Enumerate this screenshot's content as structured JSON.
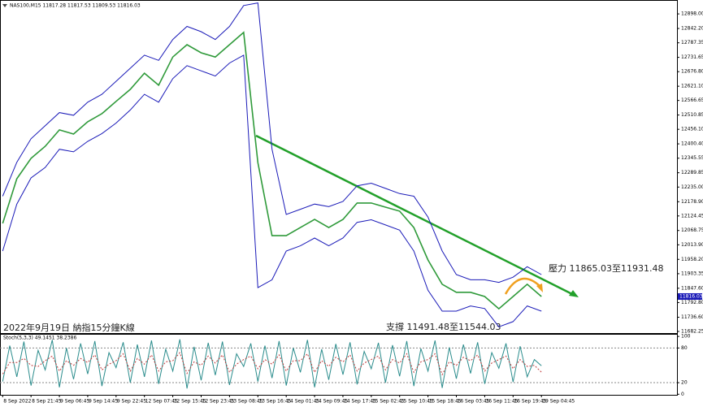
{
  "chart_data": [
    {
      "type": "line",
      "title": "NAS100,M15  11817.28 11817.53 11809.53 11816.03",
      "annotations": [
        "2022年9月19日 納指15分鐘K線",
        "壓力 11865.03至11931.48",
        "支撐 11491.48至11544.03"
      ],
      "current_price": {
        "value": 11816.03,
        "label": "11816.03"
      },
      "x": [
        0,
        16,
        32,
        48,
        64,
        80,
        96,
        112,
        128,
        144,
        160,
        176,
        192,
        208,
        224,
        240,
        256,
        272,
        288,
        304,
        320,
        336,
        352,
        368,
        384,
        400,
        416,
        432,
        448,
        464,
        480,
        496,
        512,
        528,
        544,
        560,
        576,
        592,
        608
      ],
      "series": [
        {
          "color": "#2f9a3a",
          "values": [
            12096,
            12267,
            12345,
            12391,
            12454,
            12438,
            12485,
            12516,
            12563,
            12609,
            12671,
            12625,
            12733,
            12780,
            12749,
            12733,
            12780,
            12827,
            12329,
            12049,
            12049,
            12080,
            12111,
            12080,
            12111,
            12174,
            12174,
            12158,
            12143,
            12080,
            11956,
            11863,
            11832,
            11832,
            11816,
            11769,
            11816,
            11863,
            11816.03
          ]
        },
        {
          "color": "#1a1ab8",
          "values": [
            12200,
            12330,
            12420,
            12470,
            12520,
            12510,
            12560,
            12590,
            12640,
            12690,
            12740,
            12720,
            12800,
            12850,
            12830,
            12800,
            12850,
            12930,
            12940,
            12380,
            12130,
            12150,
            12170,
            12160,
            12180,
            12240,
            12250,
            12230,
            12210,
            12200,
            12120,
            11990,
            11900,
            11880,
            11880,
            11870,
            11890,
            11930,
            11900
          ]
        },
        {
          "color": "#1a1ab8",
          "values": [
            11990,
            12170,
            12270,
            12310,
            12380,
            12370,
            12410,
            12440,
            12480,
            12530,
            12590,
            12560,
            12650,
            12700,
            12680,
            12660,
            12710,
            12740,
            11850,
            11880,
            11990,
            12010,
            12040,
            12010,
            12040,
            12100,
            12110,
            12090,
            12070,
            11990,
            11840,
            11760,
            11760,
            11780,
            11770,
            11700,
            11720,
            11780,
            11760
          ]
        }
      ],
      "xlim": [
        -3,
        761
      ],
      "xticks": [
        {
          "value": 0,
          "label": "8 Sep 2022"
        },
        {
          "value": 32,
          "label": "8 Sep 21:45"
        },
        {
          "value": 64,
          "label": "9 Sep 06:45"
        },
        {
          "value": 96,
          "label": "9 Sep 14:45"
        },
        {
          "value": 128,
          "label": "9 Sep 22:45"
        },
        {
          "value": 160,
          "label": "12 Sep 07:45"
        },
        {
          "value": 192,
          "label": "12 Sep 15:45"
        },
        {
          "value": 224,
          "label": "12 Sep 23:45"
        },
        {
          "value": 256,
          "label": "13 Sep 08:45"
        },
        {
          "value": 288,
          "label": "13 Sep 16:45"
        },
        {
          "value": 320,
          "label": "14 Sep 01:45"
        },
        {
          "value": 352,
          "label": "14 Sep 09:45"
        },
        {
          "value": 384,
          "label": "14 Sep 17:45"
        },
        {
          "value": 416,
          "label": "15 Sep 02:45"
        },
        {
          "value": 448,
          "label": "15 Sep 10:45"
        },
        {
          "value": 480,
          "label": "15 Sep 18:45"
        },
        {
          "value": 512,
          "label": "16 Sep 03:45"
        },
        {
          "value": 544,
          "label": "16 Sep 11:45"
        },
        {
          "value": 576,
          "label": "16 Sep 19:45"
        },
        {
          "value": 608,
          "label": "19 Sep 04:45"
        }
      ],
      "ylim": [
        11676,
        12945
      ],
      "yticks": [
        {
          "value": 12898,
          "label": "12898.00"
        },
        {
          "value": 12842.2,
          "label": "12842.20"
        },
        {
          "value": 12787.35,
          "label": "12787.35"
        },
        {
          "value": 12731.65,
          "label": "12731.65"
        },
        {
          "value": 12676.8,
          "label": "12676.80"
        },
        {
          "value": 12621.1,
          "label": "12621.10"
        },
        {
          "value": 12566.65,
          "label": "12566.65"
        },
        {
          "value": 12510.85,
          "label": "12510.85"
        },
        {
          "value": 12456.1,
          "label": "12456.10"
        },
        {
          "value": 12400.4,
          "label": "12400.40"
        },
        {
          "value": 12345.55,
          "label": "12345.55"
        },
        {
          "value": 12289.85,
          "label": "12289.85"
        },
        {
          "value": 12235,
          "label": "12235.00"
        },
        {
          "value": 12178.9,
          "label": "12178.90"
        },
        {
          "value": 12124.45,
          "label": "12124.45"
        },
        {
          "value": 12068.75,
          "label": "12068.75"
        },
        {
          "value": 12013.9,
          "label": "12013.90"
        },
        {
          "value": 11958.2,
          "label": "11958.20"
        },
        {
          "value": 11903.35,
          "label": "11903.35"
        },
        {
          "value": 11847.6,
          "label": "11847.60"
        },
        {
          "value": 11792.8,
          "label": "11792.80"
        },
        {
          "value": 11736.6,
          "label": "11736.60"
        },
        {
          "value": 11682.25,
          "label": "11682.25"
        }
      ]
    },
    {
      "type": "line",
      "title": "Stoch(5,3,3) 49.1451 38.2386",
      "x": [
        0,
        8,
        16,
        24,
        32,
        40,
        48,
        56,
        64,
        72,
        80,
        88,
        96,
        104,
        112,
        120,
        128,
        136,
        144,
        152,
        160,
        168,
        176,
        184,
        192,
        200,
        208,
        216,
        224,
        232,
        240,
        248,
        256,
        264,
        272,
        280,
        288,
        296,
        304,
        312,
        320,
        328,
        336,
        344,
        352,
        360,
        368,
        376,
        384,
        392,
        400,
        408,
        416,
        424,
        432,
        440,
        448,
        456,
        464,
        472,
        480,
        488,
        496,
        504,
        512,
        520,
        528,
        536,
        544,
        552,
        560,
        568,
        576,
        584,
        592,
        600,
        608
      ],
      "series": [
        {
          "color": "#2a8c8c",
          "dash": false,
          "values": [
            22,
            84,
            30,
            91,
            15,
            76,
            42,
            94,
            12,
            80,
            26,
            88,
            35,
            92,
            14,
            72,
            46,
            90,
            20,
            86,
            30,
            93,
            18,
            78,
            40,
            95,
            10,
            82,
            24,
            89,
            33,
            91,
            16,
            70,
            48,
            88,
            22,
            84,
            28,
            92,
            15,
            80,
            38,
            94,
            12,
            78,
            25,
            87,
            34,
            90,
            17,
            74,
            44,
            89,
            20,
            85,
            31,
            92,
            14,
            79,
            40,
            93,
            11,
            81,
            27,
            86,
            36,
            90,
            18,
            72,
            45,
            88,
            21,
            83,
            30,
            60,
            49.1451
          ]
        },
        {
          "color": "#c03a3a",
          "dash": true,
          "values": [
            35,
            55,
            55,
            62,
            50,
            48,
            58,
            66,
            40,
            58,
            50,
            62,
            55,
            68,
            42,
            52,
            58,
            70,
            40,
            62,
            52,
            68,
            40,
            56,
            58,
            72,
            36,
            56,
            50,
            66,
            54,
            68,
            38,
            52,
            60,
            66,
            44,
            60,
            52,
            68,
            40,
            58,
            58,
            70,
            38,
            58,
            48,
            64,
            56,
            68,
            40,
            54,
            60,
            66,
            42,
            60,
            54,
            70,
            38,
            56,
            60,
            70,
            34,
            56,
            50,
            64,
            58,
            68,
            40,
            54,
            60,
            66,
            44,
            60,
            48,
            50,
            38.2386
          ]
        }
      ],
      "ylim": [
        -1,
        103
      ],
      "yticks": [
        0,
        20,
        80,
        100
      ]
    }
  ]
}
